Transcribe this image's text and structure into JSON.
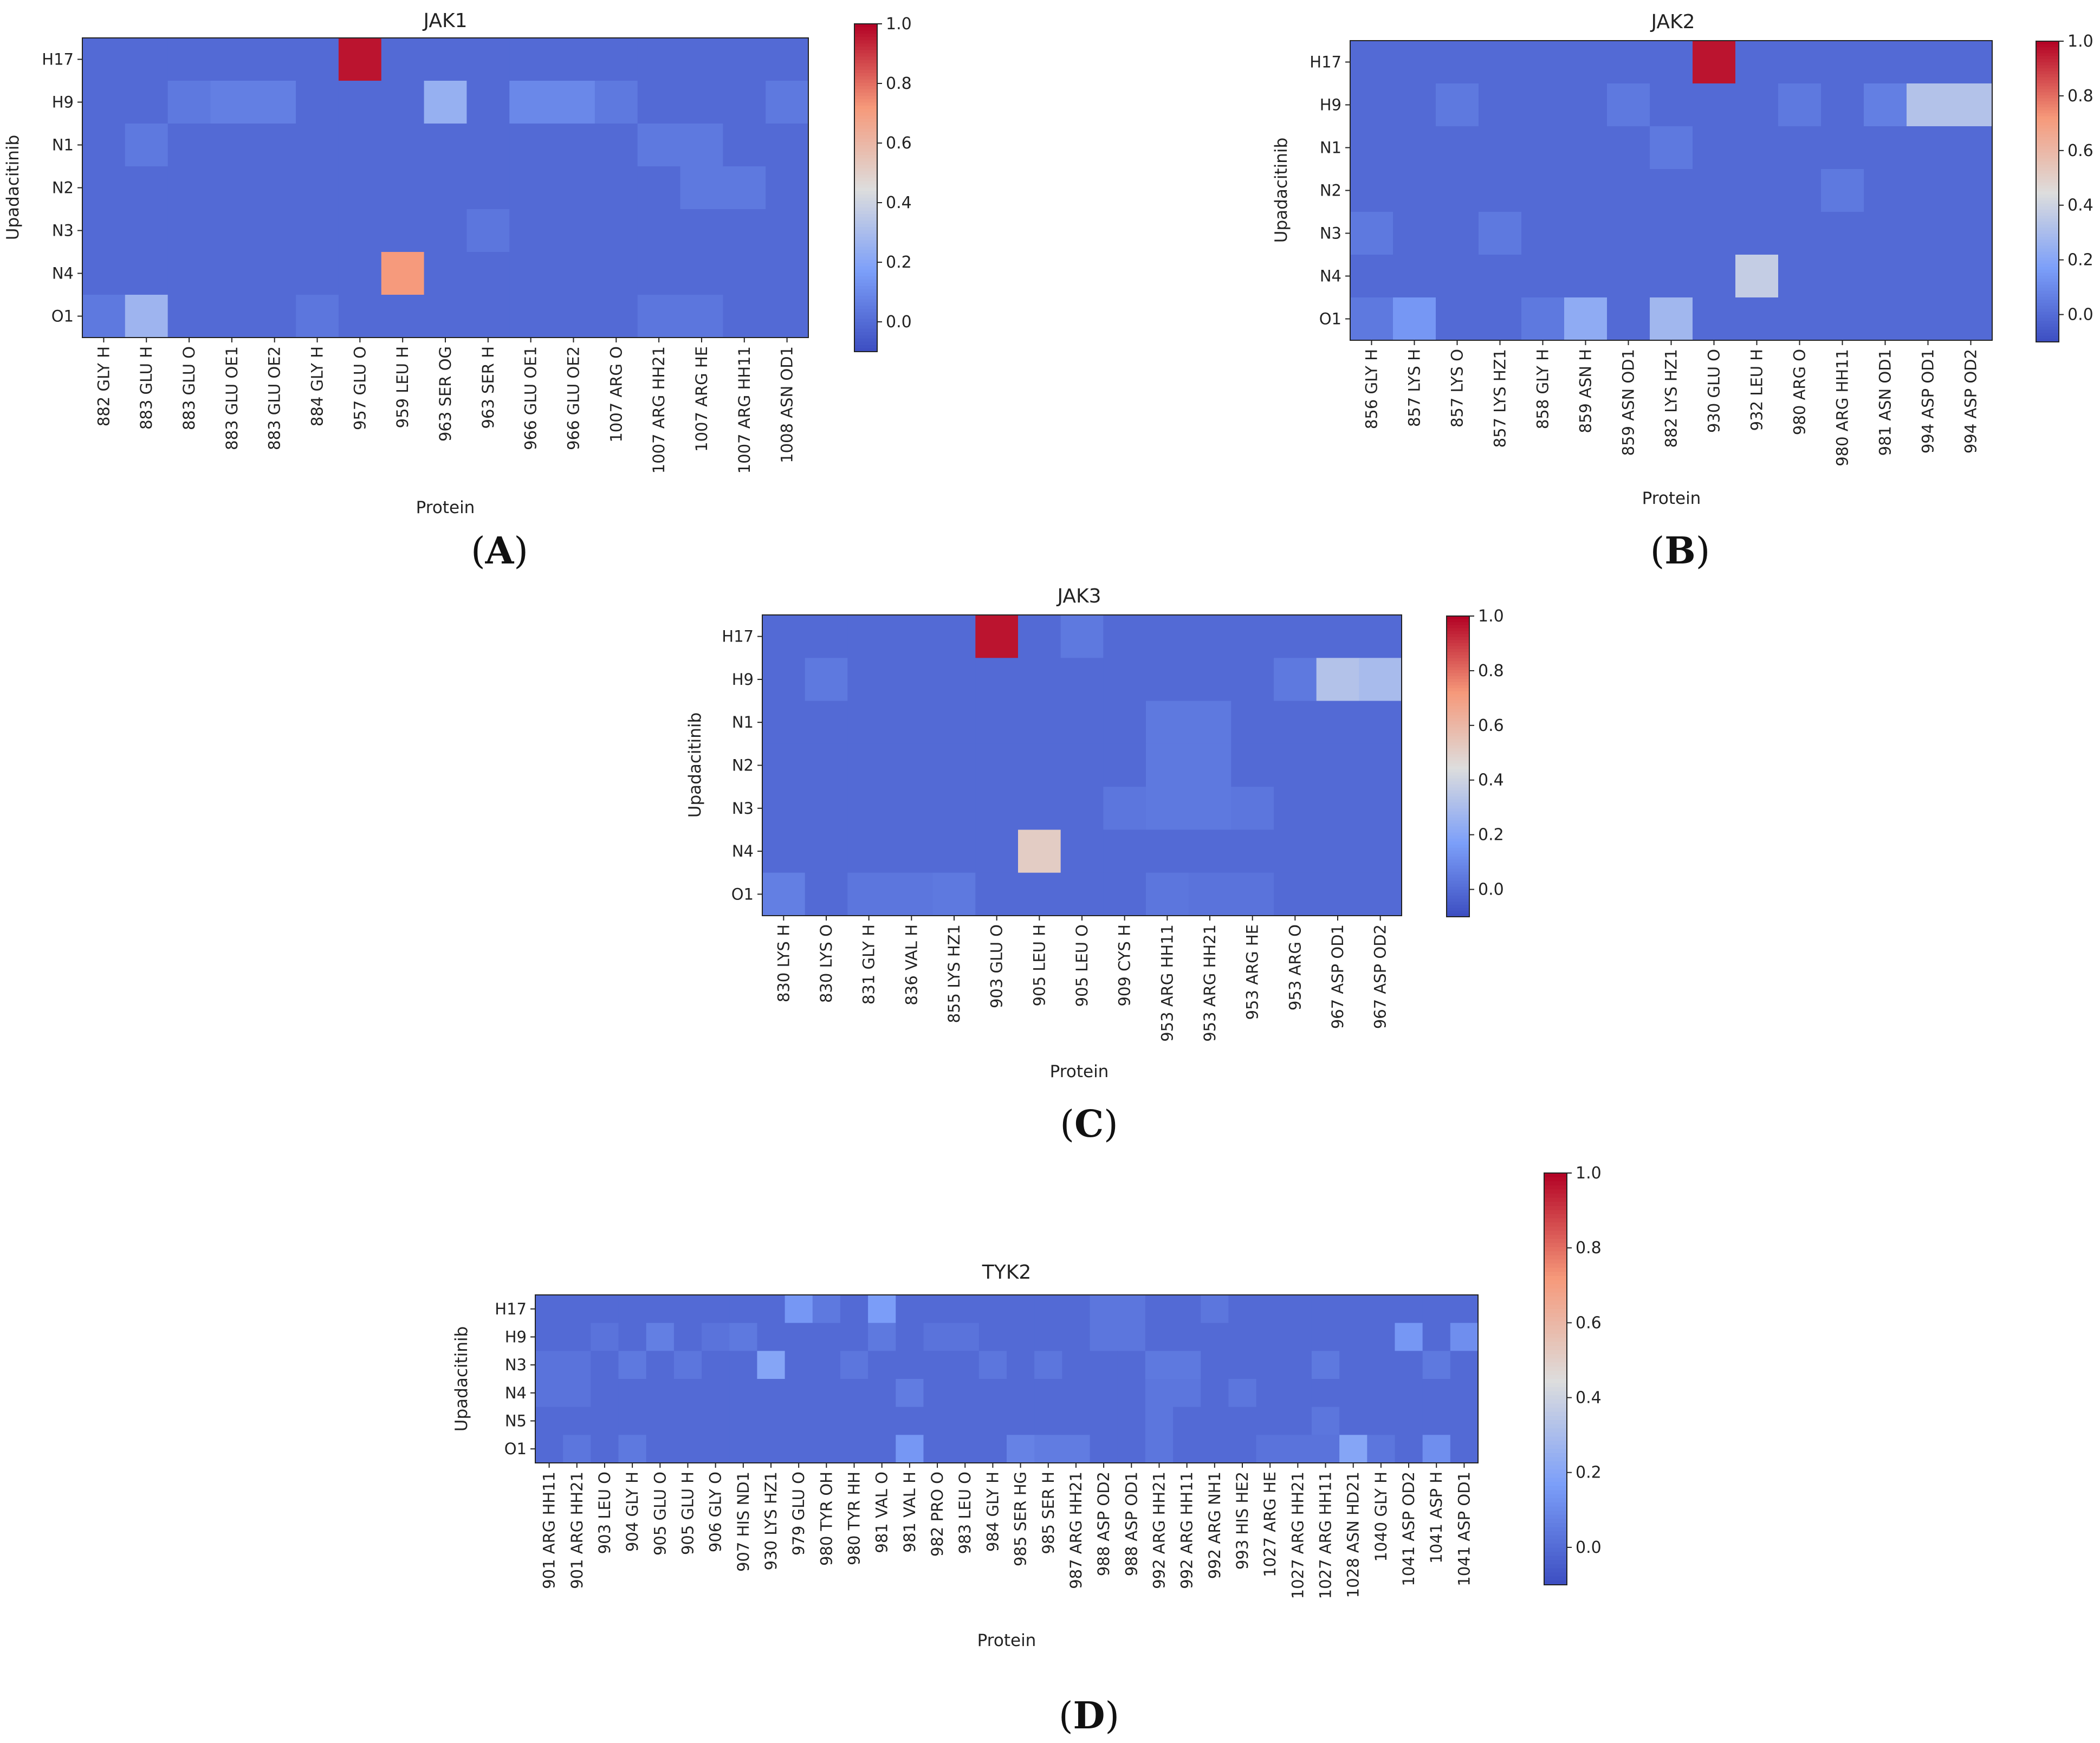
{
  "figure": {
    "ylabel": "Upadacitinib",
    "xlabel": "Protein",
    "colorbar_ticks": [
      "1.0",
      "0.8",
      "0.6",
      "0.4",
      "0.2",
      "0.0"
    ],
    "colorbar_colors": {
      "min": "#3b4cc0",
      "mid": "#dddddd",
      "max": "#b40426"
    }
  },
  "chart_data": [
    {
      "id": "A",
      "letter": "A",
      "type": "heatmap",
      "title": "JAK1",
      "xlabel": "Protein",
      "ylabel": "Upadacitinib",
      "colorbar_range": [
        -0.1,
        1.0
      ],
      "rows": [
        "H17",
        "H9",
        "N1",
        "N2",
        "N3",
        "N4",
        "O1"
      ],
      "cols": [
        "882 GLY H",
        "883 GLU H",
        "883 GLU O",
        "883 GLU OE1",
        "883 GLU OE2",
        "884 GLY H",
        "957 GLU O",
        "959 LEU H",
        "963 SER OG",
        "963 SER H",
        "966 GLU OE1",
        "966 GLU OE2",
        "1007 ARG O",
        "1007 ARG HH21",
        "1007 ARG HE",
        "1007 ARG HH11",
        "1008 ASN OD1"
      ],
      "values": [
        [
          0,
          0,
          0,
          0,
          0,
          0,
          0.97,
          0,
          0,
          0,
          0,
          0,
          0,
          0,
          0,
          0,
          0
        ],
        [
          0,
          0,
          0.05,
          0.07,
          0.07,
          0,
          0,
          0,
          0.25,
          0,
          0.1,
          0.1,
          0.05,
          0,
          0,
          0,
          0.05
        ],
        [
          0,
          0.05,
          0,
          0,
          0,
          0,
          0,
          0,
          0,
          0,
          0,
          0,
          0,
          0.05,
          0.05,
          0,
          0
        ],
        [
          0,
          0,
          0,
          0,
          0,
          0,
          0,
          0,
          0,
          0,
          0,
          0,
          0,
          0,
          0.05,
          0.05,
          0
        ],
        [
          0,
          0,
          0,
          0,
          0,
          0,
          0,
          0,
          0,
          0.04,
          0,
          0,
          0,
          0,
          0,
          0,
          0
        ],
        [
          0,
          0,
          0,
          0,
          0,
          0,
          0,
          0.72,
          0,
          0,
          0,
          0,
          0,
          0,
          0,
          0,
          0
        ],
        [
          0.05,
          0.27,
          0,
          0,
          0,
          0.04,
          0,
          0,
          0,
          0,
          0,
          0,
          0,
          0.04,
          0.04,
          0,
          0
        ]
      ]
    },
    {
      "id": "B",
      "letter": "B",
      "type": "heatmap",
      "title": "JAK2",
      "xlabel": "Protein",
      "ylabel": "Upadacitinib",
      "colorbar_range": [
        -0.1,
        1.0
      ],
      "rows": [
        "H17",
        "H9",
        "N1",
        "N2",
        "N3",
        "N4",
        "O1"
      ],
      "cols": [
        "856 GLY H",
        "857 LYS H",
        "857 LYS O",
        "857 LYS HZ1",
        "858 GLY H",
        "859 ASN H",
        "859 ASN OD1",
        "882 LYS HZ1",
        "930 GLU O",
        "932 LEU H",
        "980 ARG O",
        "980 ARG HH11",
        "981 ASN OD1",
        "994 ASP OD1",
        "994 ASP OD2"
      ],
      "values": [
        [
          0,
          0,
          0,
          0,
          0,
          0,
          0,
          0,
          0.97,
          0,
          0,
          0,
          0,
          0,
          0
        ],
        [
          0,
          0,
          0.05,
          0,
          0,
          0,
          0.05,
          0,
          0,
          0,
          0.05,
          0,
          0.07,
          0.33,
          0.33
        ],
        [
          0,
          0,
          0,
          0,
          0,
          0,
          0,
          0.05,
          0,
          0,
          0,
          0,
          0,
          0,
          0
        ],
        [
          0,
          0,
          0,
          0,
          0,
          0,
          0,
          0,
          0,
          0,
          0,
          0.05,
          0,
          0,
          0
        ],
        [
          0.05,
          0,
          0,
          0.05,
          0,
          0,
          0,
          0,
          0,
          0,
          0,
          0,
          0,
          0,
          0
        ],
        [
          0,
          0,
          0,
          0,
          0,
          0,
          0,
          0,
          0,
          0.38,
          0,
          0,
          0,
          0,
          0
        ],
        [
          0.05,
          0.15,
          0,
          0,
          0.05,
          0.23,
          0,
          0.28,
          0,
          0,
          0,
          0,
          0,
          0,
          0
        ]
      ]
    },
    {
      "id": "C",
      "letter": "C",
      "type": "heatmap",
      "title": "JAK3",
      "xlabel": "Protein",
      "ylabel": "Upadacitinib",
      "colorbar_range": [
        -0.1,
        1.0
      ],
      "rows": [
        "H17",
        "H9",
        "N1",
        "N2",
        "N3",
        "N4",
        "O1"
      ],
      "cols": [
        "830 LYS H",
        "830 LYS O",
        "831 GLY H",
        "836 VAL H",
        "855 LYS HZ1",
        "903 GLU O",
        "905 LEU H",
        "905 LEU O",
        "909 CYS H",
        "953 ARG HH11",
        "953 ARG HH21",
        "953 ARG HE",
        "953 ARG O",
        "967 ASP OD1",
        "967 ASP OD2"
      ],
      "values": [
        [
          0,
          0,
          0,
          0,
          0,
          0.97,
          0,
          0.05,
          0,
          0,
          0,
          0,
          0,
          0,
          0
        ],
        [
          0,
          0.05,
          0,
          0,
          0,
          0,
          0,
          0,
          0,
          0,
          0,
          0,
          0.05,
          0.33,
          0.3
        ],
        [
          0,
          0,
          0,
          0,
          0,
          0,
          0,
          0,
          0,
          0.05,
          0.05,
          0,
          0,
          0,
          0
        ],
        [
          0,
          0,
          0,
          0,
          0,
          0,
          0,
          0,
          0,
          0.05,
          0.05,
          0,
          0,
          0,
          0
        ],
        [
          0,
          0,
          0,
          0,
          0,
          0,
          0,
          0,
          0.04,
          0.05,
          0.05,
          0.04,
          0,
          0,
          0
        ],
        [
          0,
          0,
          0,
          0,
          0,
          0,
          0.52,
          0,
          0,
          0,
          0,
          0,
          0,
          0,
          0
        ],
        [
          0.07,
          0,
          0.04,
          0.04,
          0.05,
          0,
          0,
          0,
          0,
          0.04,
          0.03,
          0.03,
          0,
          0,
          0
        ]
      ]
    },
    {
      "id": "D",
      "letter": "D",
      "type": "heatmap",
      "title": "TYK2",
      "xlabel": "Protein",
      "ylabel": "Upadacitinib",
      "colorbar_range": [
        -0.1,
        1.0
      ],
      "rows": [
        "H17",
        "H9",
        "N3",
        "N4",
        "N5",
        "O1"
      ],
      "cols": [
        "901 ARG HH11",
        "901 ARG HH21",
        "903 LEU O",
        "904 GLY H",
        "905 GLU O",
        "905 GLU H",
        "906 GLY O",
        "907 HIS ND1",
        "930 LYS HZ1",
        "979 GLU O",
        "980 TYR OH",
        "980 TYR HH",
        "981 VAL O",
        "981 VAL H",
        "982 PRO O",
        "983 LEU O",
        "984 GLY H",
        "985 SER HG",
        "985 SER H",
        "987 ARG HH21",
        "988 ASP OD2",
        "988 ASP OD1",
        "992 ARG HH21",
        "992 ARG HH11",
        "992 ARG NH1",
        "993 HIS HE2",
        "1027 ARG HE",
        "1027 ARG HH21",
        "1027 ARG HH11",
        "1028 ASN HD21",
        "1040 GLY H",
        "1041 ASP OD2",
        "1041 ASP H",
        "1041 ASP OD1"
      ],
      "values": [
        [
          0,
          0,
          0,
          0,
          0,
          0,
          0,
          0,
          0,
          0.15,
          0.05,
          0,
          0.17,
          0,
          0,
          0,
          0,
          0,
          0,
          0,
          0.04,
          0.04,
          0,
          0,
          0.04,
          0,
          0,
          0,
          0,
          0,
          0,
          0,
          0,
          0
        ],
        [
          0,
          0,
          0.03,
          0,
          0.07,
          0,
          0.03,
          0.05,
          0,
          0,
          0,
          0,
          0.05,
          0,
          0.03,
          0.03,
          0,
          0,
          0,
          0,
          0.04,
          0.04,
          0,
          0,
          0,
          0,
          0,
          0,
          0,
          0,
          0,
          0.15,
          0,
          0.12
        ],
        [
          0.03,
          0.03,
          0,
          0.05,
          0,
          0.04,
          0,
          0,
          0.2,
          0,
          0,
          0.04,
          0,
          0,
          0,
          0,
          0.04,
          0,
          0.04,
          0,
          0,
          0,
          0.05,
          0.05,
          0,
          0,
          0,
          0,
          0.05,
          0,
          0,
          0,
          0.05,
          0
        ],
        [
          0.03,
          0.03,
          0,
          0,
          0,
          0,
          0,
          0,
          0,
          0,
          0,
          0,
          0,
          0.06,
          0,
          0,
          0,
          0,
          0,
          0,
          0,
          0,
          0.04,
          0.04,
          0,
          0.04,
          0,
          0,
          0,
          0,
          0,
          0,
          0,
          0
        ],
        [
          0,
          0,
          0,
          0,
          0,
          0,
          0,
          0,
          0,
          0,
          0,
          0,
          0,
          0,
          0,
          0,
          0,
          0,
          0,
          0,
          0,
          0,
          0.04,
          0,
          0,
          0,
          0,
          0,
          0.04,
          0,
          0,
          0,
          0,
          0
        ],
        [
          0,
          0.04,
          0,
          0.05,
          0,
          0,
          0,
          0,
          0,
          0,
          0,
          0,
          0,
          0.15,
          0,
          0,
          0,
          0.08,
          0.06,
          0.06,
          0,
          0,
          0.04,
          0,
          0,
          0,
          0.03,
          0.03,
          0.03,
          0.2,
          0.04,
          0,
          0.12,
          0
        ]
      ]
    }
  ]
}
